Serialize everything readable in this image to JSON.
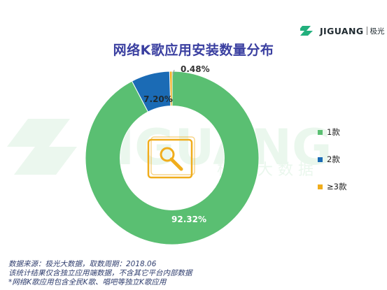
{
  "brand": {
    "logo_text": "JIGUANG",
    "logo_cn": "极光",
    "watermark_text": "JIGUANG",
    "watermark_cn": "极 光 大 数 据"
  },
  "title": "网络K歌应用安装数量分布",
  "chart_data": {
    "type": "pie",
    "title": "网络K歌应用安装数量分布",
    "categories": [
      "1款",
      "2款",
      "≥3款"
    ],
    "values": [
      92.32,
      7.2,
      0.48
    ],
    "labels": [
      "92.32%",
      "7.20%",
      "0.48%"
    ],
    "colors": [
      "#5abf72",
      "#1b6bb5",
      "#f0ad1c"
    ],
    "hole": 0.6,
    "legend": "right",
    "center_icon": "microphone-icon"
  },
  "notes": {
    "line1": "数据来源：极光大数据，取数周期：2018.06",
    "line2": "该统计结果仅含独立应用端数据，不含其它平台内部数据",
    "line3": "*网络K歌应用包含全民K歌、唱吧等独立K歌应用"
  }
}
